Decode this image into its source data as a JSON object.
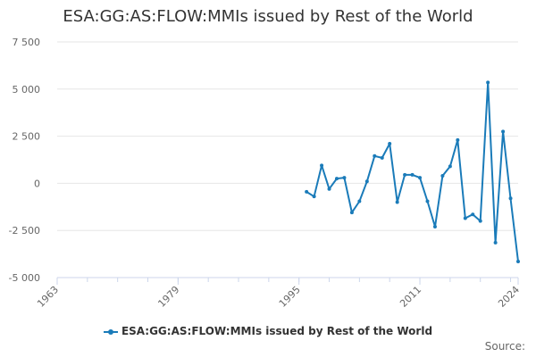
{
  "title": "ESA:GG:AS:FLOW:MMIs issued by Rest of the World",
  "source_label": "Source:",
  "colors": {
    "series": "#1a7bb9",
    "grid": "#e6e6e6",
    "axis": "#ccd6eb",
    "text": "#666666"
  },
  "chart_data": {
    "type": "line",
    "title": "ESA:GG:AS:FLOW:MMIs issued by Rest of the World",
    "xlabel": "",
    "ylabel": "",
    "xlim": [
      1963,
      2024
    ],
    "ylim": [
      -5000,
      7500
    ],
    "x_ticks": [
      1963,
      1979,
      1995,
      2011,
      2024
    ],
    "x_tick_labels": [
      "1963",
      "1979",
      "1995",
      "2011",
      "2024"
    ],
    "y_ticks": [
      -5000,
      -2500,
      0,
      2500,
      5000,
      7500
    ],
    "y_tick_labels": [
      "-5 000",
      "-2 500",
      "0",
      "2 500",
      "5 000",
      "7 500"
    ],
    "grid": true,
    "legend_position": "bottom",
    "series": [
      {
        "name": "ESA:GG:AS:FLOW:MMIs issued by Rest of the World",
        "x": [
          1996,
          1997,
          1998,
          1999,
          2000,
          2001,
          2002,
          2003,
          2004,
          2005,
          2006,
          2007,
          2008,
          2009,
          2010,
          2011,
          2012,
          2013,
          2014,
          2015,
          2016,
          2017,
          2018,
          2019,
          2020,
          2021,
          2022,
          2023,
          2024
        ],
        "y": [
          -450,
          -700,
          950,
          -300,
          250,
          300,
          -1550,
          -950,
          100,
          1450,
          1350,
          2100,
          -1000,
          450,
          450,
          300,
          -950,
          -2300,
          400,
          900,
          2300,
          -1850,
          -1650,
          -2000,
          5350,
          -3150,
          2750,
          -800,
          -4150
        ]
      }
    ]
  }
}
